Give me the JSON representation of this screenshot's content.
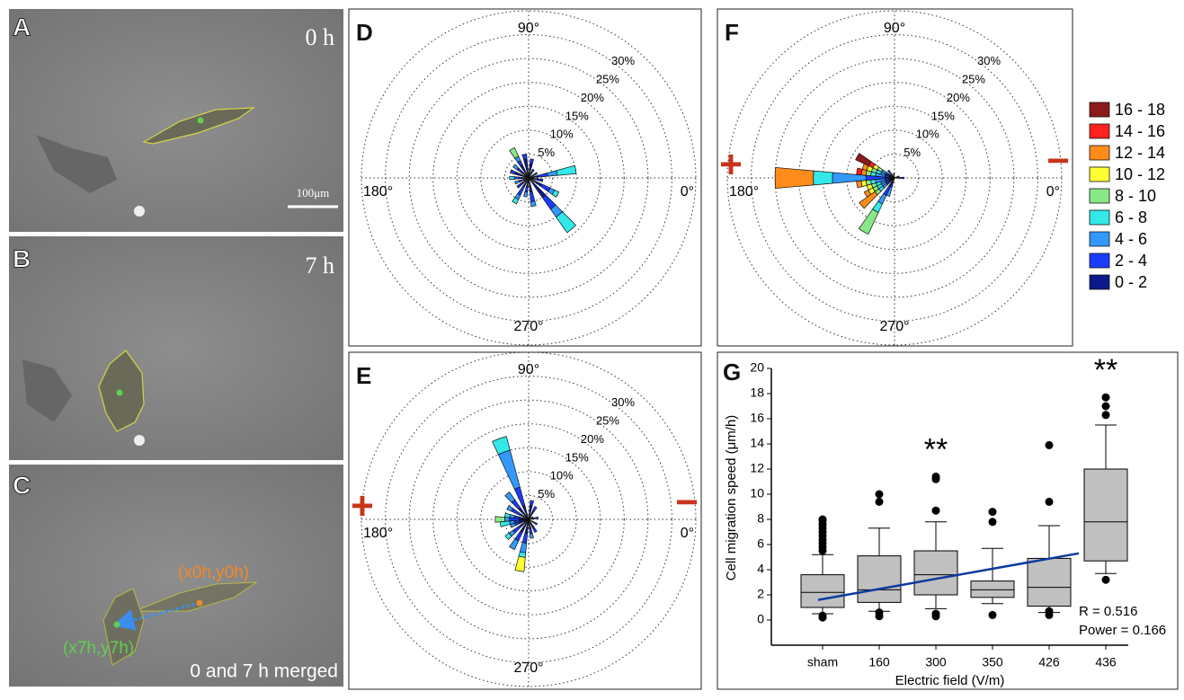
{
  "panels": [
    {
      "label": "A",
      "time": "0 h",
      "scale_bar": "100μm"
    },
    {
      "label": "B",
      "time": "7 h"
    },
    {
      "label": "C",
      "start": "(x0h,y0h)",
      "end": "(x7h,y7h)",
      "caption": "0 and 7 h merged"
    }
  ],
  "chart_data": [
    {
      "type": "polar_bar",
      "label": "D",
      "rlim": [
        0,
        35
      ],
      "rticks": [
        {
          "value": 5,
          "label": "5%"
        },
        {
          "value": 10,
          "label": "10%"
        },
        {
          "value": 15,
          "label": "15%"
        },
        {
          "value": 20,
          "label": "20%"
        },
        {
          "value": 25,
          "label": "25%"
        },
        {
          "value": 30,
          "label": "30%"
        }
      ],
      "angle_labels": [
        {
          "value": 90,
          "label": "90°"
        },
        {
          "value": 180,
          "label": "180°"
        },
        {
          "value": 270,
          "label": "270°"
        },
        {
          "value": 0,
          "label": "0°"
        }
      ],
      "categories": [
        10,
        30,
        60,
        80,
        100,
        120,
        140,
        160,
        180,
        200,
        220,
        240,
        260,
        280,
        310,
        330,
        350
      ],
      "series": [
        {
          "color": "#0a1a8c",
          "values": [
            2,
            1,
            2,
            3,
            4,
            3,
            2,
            3,
            2,
            1,
            2,
            2,
            2,
            3,
            5,
            3,
            2
          ]
        },
        {
          "color": "#1a3cff",
          "values": [
            2,
            1,
            0,
            1,
            1,
            1,
            1,
            1,
            1,
            1,
            1,
            2,
            1,
            2,
            3,
            2,
            1
          ]
        },
        {
          "color": "#3399ff",
          "values": [
            2,
            0,
            0,
            0,
            0,
            1,
            1,
            0,
            0,
            1,
            0,
            1,
            1,
            1,
            2,
            1,
            0
          ]
        },
        {
          "color": "#33e8e8",
          "values": [
            4,
            0,
            0,
            0,
            0,
            0,
            0,
            0,
            1,
            0,
            0,
            1,
            0,
            0,
            4,
            1,
            0
          ]
        },
        {
          "color": "#88e888",
          "values": [
            0,
            0,
            0,
            0,
            0,
            2,
            0,
            0,
            0,
            0,
            0,
            0,
            0,
            0,
            0,
            0,
            0
          ]
        }
      ]
    },
    {
      "type": "polar_bar",
      "label": "E",
      "rlim": [
        0,
        35
      ],
      "poles": {
        "left": "+",
        "right": "−"
      },
      "rticks": [
        {
          "value": 5,
          "label": "5%"
        },
        {
          "value": 10,
          "label": "10%"
        },
        {
          "value": 15,
          "label": "15%"
        },
        {
          "value": 20,
          "label": "20%"
        },
        {
          "value": 25,
          "label": "25%"
        },
        {
          "value": 30,
          "label": "30%"
        }
      ],
      "angle_labels": [
        {
          "value": 90,
          "label": "90°"
        },
        {
          "value": 180,
          "label": "180°"
        },
        {
          "value": 270,
          "label": "270°"
        },
        {
          "value": 0,
          "label": "0°"
        }
      ],
      "categories": [
        10,
        30,
        60,
        80,
        110,
        130,
        150,
        170,
        180,
        190,
        200,
        220,
        240,
        260,
        280,
        300,
        330
      ],
      "series": [
        {
          "color": "#0a1a8c",
          "values": [
            1,
            1,
            2,
            3,
            3,
            3,
            2,
            2,
            2,
            2,
            2,
            2,
            3,
            3,
            2,
            2,
            1
          ]
        },
        {
          "color": "#1a3cff",
          "values": [
            1,
            0,
            1,
            1,
            4,
            2,
            2,
            1,
            2,
            1,
            1,
            2,
            2,
            2,
            1,
            1,
            1
          ]
        },
        {
          "color": "#3399ff",
          "values": [
            0,
            0,
            0,
            0,
            8,
            2,
            1,
            1,
            1,
            1,
            1,
            1,
            2,
            2,
            1,
            0,
            0
          ]
        },
        {
          "color": "#33e8e8",
          "values": [
            0,
            0,
            0,
            0,
            3,
            0,
            0,
            1,
            0,
            2,
            0,
            1,
            0,
            1,
            0,
            0,
            0
          ]
        },
        {
          "color": "#88e888",
          "values": [
            0,
            0,
            0,
            0,
            0,
            0,
            0,
            0,
            2,
            0,
            0,
            0,
            0,
            0,
            0,
            0,
            0
          ]
        },
        {
          "color": "#ffff33",
          "values": [
            0,
            0,
            0,
            0,
            0,
            0,
            0,
            0,
            0,
            0,
            0,
            0,
            0,
            3,
            0,
            0,
            0
          ]
        }
      ]
    },
    {
      "type": "polar_bar",
      "label": "F",
      "rlim": [
        0,
        35
      ],
      "poles": {
        "left": "+",
        "right": "−"
      },
      "rticks": [
        {
          "value": 5,
          "label": "5%"
        },
        {
          "value": 10,
          "label": "10%"
        },
        {
          "value": 15,
          "label": "15%"
        },
        {
          "value": 20,
          "label": "20%"
        },
        {
          "value": 25,
          "label": "25%"
        },
        {
          "value": 30,
          "label": "30%"
        }
      ],
      "angle_labels": [
        {
          "value": 90,
          "label": "90°"
        },
        {
          "value": 180,
          "label": "180°"
        },
        {
          "value": 270,
          "label": "270°"
        },
        {
          "value": 0,
          "label": "0°"
        }
      ],
      "categories": [
        0,
        20,
        100,
        130,
        150,
        160,
        170,
        180,
        190,
        200,
        210,
        220,
        240,
        250
      ],
      "series": [
        {
          "name": "0 - 2",
          "color": "#0a1a8c",
          "values": [
            1,
            1,
            1,
            1,
            1,
            1,
            1,
            2,
            1,
            1,
            1,
            1,
            2,
            1
          ]
        },
        {
          "name": "2 - 4",
          "color": "#1a3cff",
          "values": [
            1,
            0,
            0,
            1,
            1,
            1,
            1,
            4,
            1,
            1,
            1,
            1,
            2,
            1
          ]
        },
        {
          "name": "4 - 6",
          "color": "#3399ff",
          "values": [
            0,
            0,
            0,
            0,
            1,
            1,
            2,
            7,
            2,
            1,
            1,
            1,
            2,
            2
          ]
        },
        {
          "name": "6 - 8",
          "color": "#33e8e8",
          "values": [
            0,
            0,
            0,
            0,
            0,
            1,
            1,
            4,
            1,
            1,
            1,
            1,
            2,
            0
          ]
        },
        {
          "name": "8 - 10",
          "color": "#88e888",
          "values": [
            0,
            0,
            0,
            0,
            1,
            1,
            1,
            0,
            1,
            1,
            1,
            1,
            5,
            0
          ]
        },
        {
          "name": "10 - 12",
          "color": "#ffff33",
          "values": [
            0,
            0,
            0,
            0,
            1,
            1,
            0,
            0,
            1,
            1,
            1,
            0,
            0,
            0
          ]
        },
        {
          "name": "12 - 14",
          "color": "#ff8c1a",
          "values": [
            0,
            0,
            0,
            0,
            0,
            1,
            1,
            8,
            1,
            0,
            1,
            4,
            0,
            0
          ]
        },
        {
          "name": "14 - 16",
          "color": "#ff2020",
          "values": [
            0,
            0,
            0,
            0,
            1,
            0,
            1,
            0,
            0,
            0,
            0,
            0,
            0,
            0
          ]
        },
        {
          "name": "16 - 18",
          "color": "#8b1a1a",
          "values": [
            0,
            0,
            0,
            0,
            3,
            0,
            0,
            0,
            0,
            0,
            0,
            0,
            0,
            0
          ]
        }
      ]
    },
    {
      "type": "box",
      "label": "G",
      "xlabel": "Electric field (V/m)",
      "ylabel": "Cell migration speed (μm/h)",
      "ylim": [
        -2,
        20
      ],
      "yticks": [
        0,
        2,
        4,
        6,
        8,
        10,
        12,
        14,
        16,
        18,
        20
      ],
      "categories": [
        "sham",
        "160",
        "300",
        "350",
        "426",
        "436"
      ],
      "boxes": [
        {
          "whislo": 0.5,
          "q1": 1,
          "med": 2.2,
          "q3": 3.6,
          "whishi": 5.2,
          "fliers": [
            5.5,
            5.8,
            6.1,
            6.4,
            6.7,
            7,
            7.3,
            7.6,
            7.9,
            8,
            0.2,
            0.35
          ]
        },
        {
          "whislo": 0.7,
          "q1": 1.4,
          "med": 2.4,
          "q3": 5.1,
          "whishi": 7.3,
          "fliers": [
            9.4,
            10,
            0.3,
            0.6
          ]
        },
        {
          "whislo": 0.9,
          "q1": 2,
          "med": 3.6,
          "q3": 5.5,
          "whishi": 7.8,
          "fliers": [
            8.7,
            11.2,
            11.4,
            0.3,
            0.5
          ]
        },
        {
          "whislo": 1.3,
          "q1": 1.8,
          "med": 2.4,
          "q3": 3.1,
          "whishi": 5.7,
          "fliers": [
            7.8,
            8.6,
            0.4
          ]
        },
        {
          "whislo": 0.6,
          "q1": 1.1,
          "med": 2.6,
          "q3": 4.9,
          "whishi": 7.5,
          "fliers": [
            9.4,
            13.9,
            0.4,
            0.7
          ]
        },
        {
          "whislo": 3.7,
          "q1": 4.7,
          "med": 7.8,
          "q3": 12,
          "whishi": 15.5,
          "fliers": [
            16.3,
            17,
            17.7,
            3.2
          ]
        }
      ],
      "trend": {
        "color": "#0b3a9e",
        "x": [
          "sham",
          "436"
        ],
        "values": [
          1.6,
          5.3
        ]
      },
      "annotations": [
        {
          "text": "**",
          "category": "300"
        },
        {
          "text": "**",
          "category": "436"
        }
      ],
      "stats": [
        "R = 0.516",
        "Power = 0.166"
      ]
    }
  ]
}
